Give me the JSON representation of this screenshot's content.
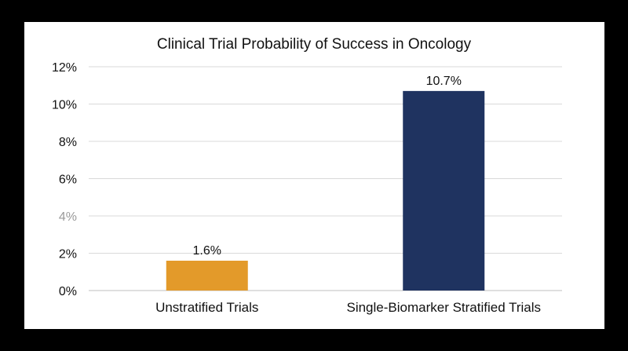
{
  "chart_data": {
    "type": "bar",
    "title": "Clinical Trial Probability of Success in Oncology",
    "xlabel": "",
    "ylabel": "",
    "ylim": [
      0,
      12
    ],
    "y_ticks": [
      0,
      2,
      4,
      6,
      8,
      10,
      12
    ],
    "y_tick_labels": [
      "0%",
      "2%",
      "4%",
      "6%",
      "8%",
      "10%",
      "12%"
    ],
    "grid": true,
    "legend": "none",
    "categories": [
      "Unstratified Trials",
      "Single-Biomarker Stratified Trials"
    ],
    "values": [
      1.6,
      10.7
    ],
    "data_labels": [
      "1.6%",
      "10.7%"
    ],
    "colors": [
      "#E39A2A",
      "#1F3360"
    ],
    "gridline_color": "#d9d9d9",
    "background": "#ffffff"
  }
}
